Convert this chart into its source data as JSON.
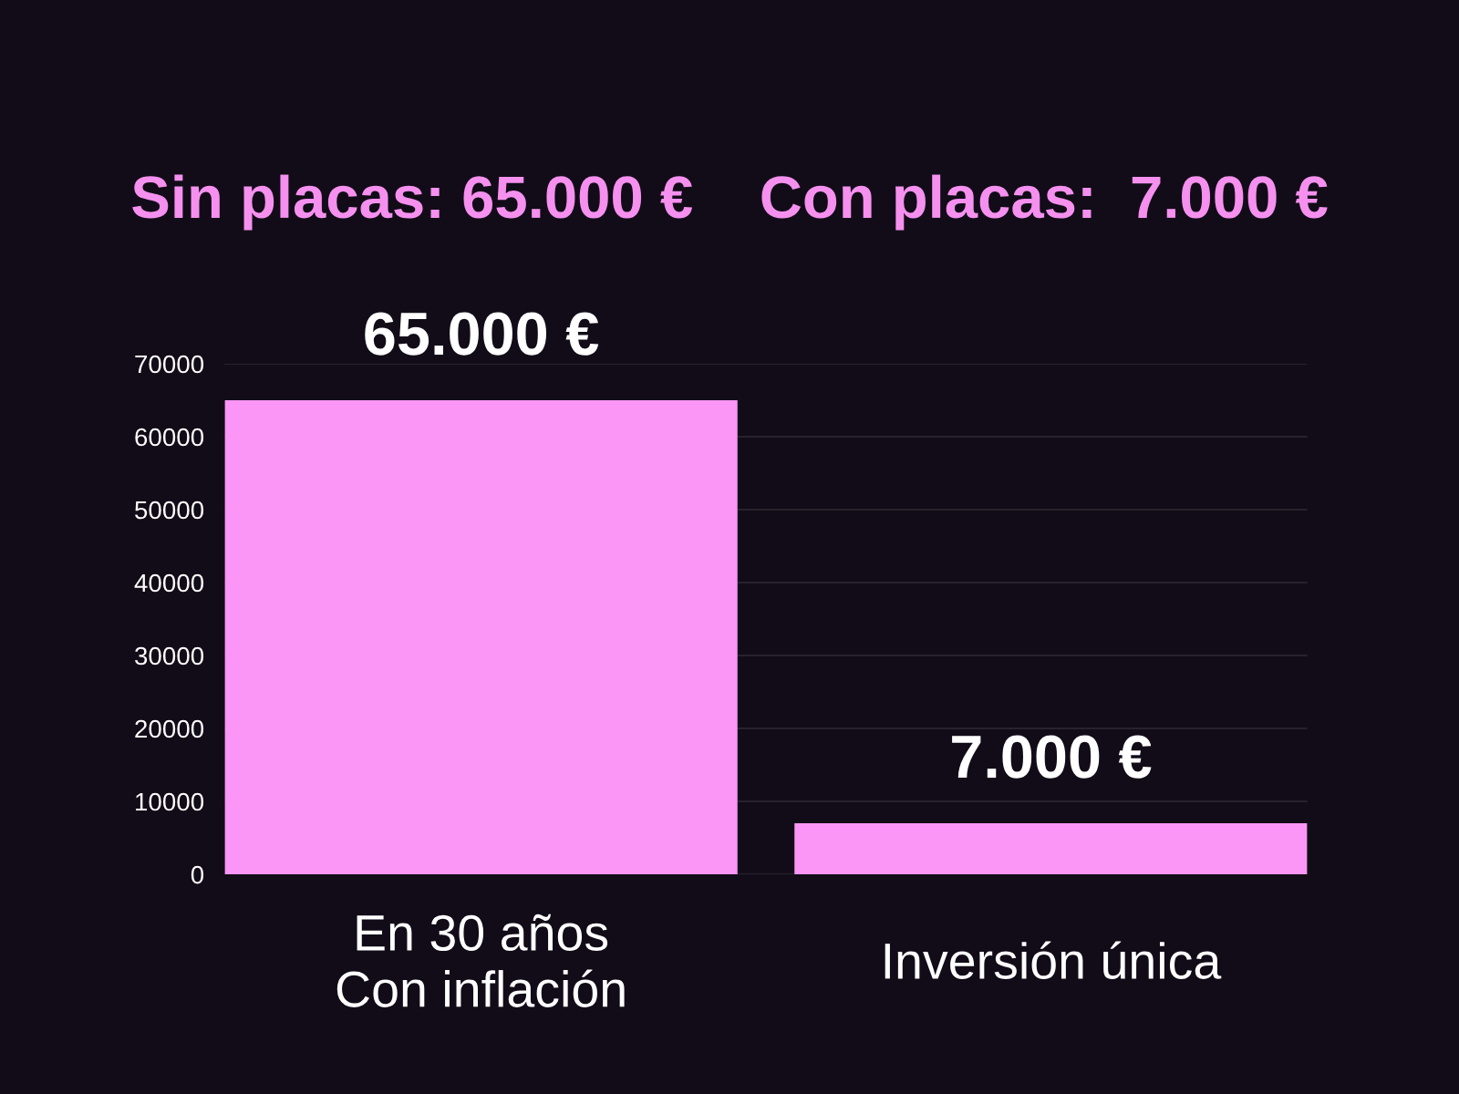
{
  "chart_data": {
    "type": "bar",
    "title": "Sin placas: 65.000 €    Con placas:  7.000 €",
    "categories": [
      "En 30 años\nCon inflación",
      "Inversión única"
    ],
    "values": [
      65000,
      7000
    ],
    "color": "#fb95f6",
    "value_labels": [
      "65.000 €",
      "7.000 €"
    ],
    "ylim": [
      0,
      70000
    ],
    "yticks": [
      0,
      10000,
      20000,
      30000,
      40000,
      50000,
      60000,
      70000
    ],
    "grid": "y"
  }
}
